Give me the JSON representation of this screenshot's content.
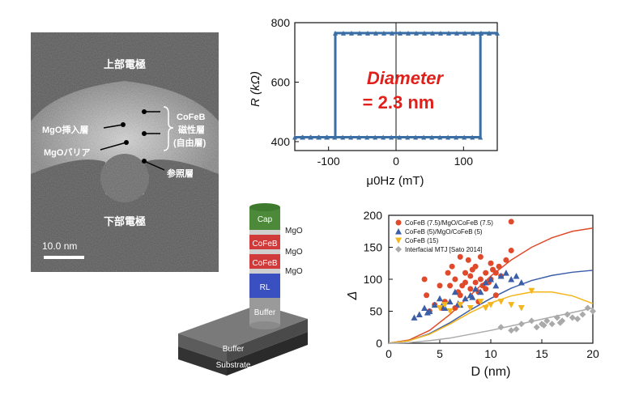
{
  "tem": {
    "top_electrode": "上部電極",
    "bottom_electrode": "下部電極",
    "mgo_insert": "MgO挿入層",
    "mgo_barrier": "MgOバリア",
    "cofeb": "CoFeB",
    "magnetic_layer": "磁性層",
    "free_layer": "(自由層)",
    "reference_layer": "参照層",
    "scale_bar": "10.0 nm"
  },
  "hysteresis": {
    "ylabel": "R (kΩ)",
    "xlabel": "μ0Hz (mT)",
    "annotation_line1": "Diameter",
    "annotation_line2": "= 2.3 nm",
    "yticks": [
      "400",
      "600",
      "800"
    ],
    "xticks": [
      "-100",
      "0",
      "100"
    ],
    "colors": {
      "line": "#3a6ea5",
      "annotation": "#e0201a"
    }
  },
  "stack": {
    "layers": [
      "Cap",
      "CoFeB",
      "CoFeB",
      "RL",
      "Buffer"
    ],
    "mgo_labels": [
      "MgO",
      "MgO",
      "MgO"
    ],
    "base_top": "Buffer",
    "base_bottom": "Substrate",
    "colors": {
      "cap": "#4c8a3a",
      "cofeb": "#d03a3a",
      "rl": "#3a4fc0",
      "buffer": "#9a9a9a",
      "mgo": "#cfcfcf"
    }
  },
  "chart_data": [
    {
      "type": "line",
      "title": "",
      "xlabel": "μ0Hz (mT)",
      "ylabel": "R (kΩ)",
      "xlim": [
        -150,
        150
      ],
      "ylim": [
        370,
        800
      ],
      "series": [
        {
          "name": "",
          "x": [
            -150,
            -90,
            -90,
            150
          ],
          "y": [
            415,
            415,
            765,
            765
          ]
        },
        {
          "name": "",
          "x": [
            150,
            125,
            125,
            -150
          ],
          "y": [
            765,
            765,
            415,
            415
          ]
        }
      ]
    },
    {
      "type": "scatter",
      "title": "",
      "xlabel": "D (nm)",
      "ylabel": "Δ",
      "xlim": [
        0,
        20
      ],
      "ylim": [
        0,
        200
      ],
      "xticks": [
        "0",
        "5",
        "10",
        "15",
        "20"
      ],
      "yticks": [
        "0",
        "50",
        "100",
        "150",
        "200"
      ],
      "legend_position": "top-left",
      "series": [
        {
          "name": "CoFeB (7.5)/MgO/CoFeB (7.5)",
          "color": "#e04a2a",
          "marker": "circle",
          "x": [
            3.5,
            3.7,
            4.5,
            5.0,
            5.2,
            5.5,
            5.8,
            6.0,
            6.2,
            6.5,
            6.8,
            7.0,
            7.0,
            7.2,
            7.5,
            7.5,
            7.8,
            8.0,
            8.0,
            8.2,
            8.5,
            8.5,
            8.8,
            9.0,
            9.0,
            9.2,
            9.5,
            9.5,
            9.8,
            10.0,
            10.0,
            10.2,
            10.5,
            10.8,
            11.0,
            11.5,
            12.0,
            12.0,
            4.0,
            6.5,
            8.8,
            10.5
          ],
          "y": [
            100,
            75,
            60,
            90,
            55,
            65,
            110,
            90,
            120,
            100,
            80,
            75,
            135,
            90,
            110,
            95,
            130,
            105,
            85,
            115,
            120,
            95,
            80,
            135,
            100,
            90,
            110,
            85,
            95,
            125,
            100,
            115,
            110,
            120,
            105,
            130,
            190,
            145,
            50,
            55,
            65,
            75
          ],
          "line": {
            "x": [
              0,
              2,
              4,
              6,
              8,
              10,
              12,
              14,
              16,
              18,
              20
            ],
            "y": [
              0,
              5,
              20,
              45,
              75,
              105,
              130,
              150,
              165,
              175,
              180
            ]
          }
        },
        {
          "name": "CoFeB (5)/MgO/CoFeB (5)",
          "color": "#3a5ea8",
          "marker": "triangle",
          "x": [
            2.5,
            3.0,
            3.5,
            4.0,
            4.5,
            5.0,
            5.5,
            6.0,
            6.5,
            7.0,
            7.5,
            8.0,
            8.5,
            9.0,
            9.5,
            10.0,
            10.5,
            11.0,
            11.5,
            12.0,
            12.5,
            13.0,
            3.8,
            5.2,
            6.8,
            8.2
          ],
          "y": [
            40,
            45,
            55,
            50,
            60,
            70,
            55,
            65,
            80,
            60,
            70,
            75,
            85,
            80,
            95,
            100,
            90,
            105,
            110,
            100,
            105,
            95,
            48,
            58,
            62,
            72
          ],
          "line": {
            "x": [
              0,
              2,
              4,
              6,
              8,
              10,
              12,
              14,
              16,
              18,
              20
            ],
            "y": [
              0,
              4,
              15,
              32,
              52,
              70,
              86,
              98,
              106,
              111,
              114
            ]
          }
        },
        {
          "name": "CoFeB (15)",
          "color": "#f5b51c",
          "marker": "triangle-down",
          "x": [
            5.0,
            5.5,
            6.0,
            7.0,
            8.0,
            9.0,
            9.5,
            10.0,
            11.0,
            12.0,
            13.0,
            14.0
          ],
          "y": [
            55,
            60,
            50,
            60,
            55,
            65,
            55,
            60,
            65,
            60,
            55,
            82
          ],
          "line": {
            "x": [
              0,
              2,
              4,
              6,
              8,
              10,
              12,
              14,
              16,
              18,
              20
            ],
            "y": [
              0,
              4,
              14,
              30,
              48,
              63,
              74,
              80,
              80,
              74,
              62
            ]
          }
        },
        {
          "name": "Interfacial MTJ [Sato 2014]",
          "color": "#aaaaaa",
          "marker": "diamond",
          "x": [
            11.0,
            12.0,
            13.0,
            14.0,
            14.5,
            15.0,
            15.5,
            16.0,
            16.5,
            17.0,
            17.5,
            18.0,
            18.5,
            19.0,
            19.5,
            20.0,
            12.5,
            15.2,
            16.8
          ],
          "y": [
            25,
            20,
            30,
            35,
            25,
            30,
            35,
            30,
            40,
            35,
            45,
            40,
            38,
            45,
            55,
            50,
            22,
            28,
            32
          ],
          "line": {
            "x": [
              0,
              2,
              4,
              6,
              8,
              10,
              12,
              14,
              16,
              18,
              20
            ],
            "y": [
              0,
              1,
              4,
              8,
              14,
              20,
              27,
              34,
              41,
              48,
              55
            ]
          }
        }
      ]
    }
  ]
}
